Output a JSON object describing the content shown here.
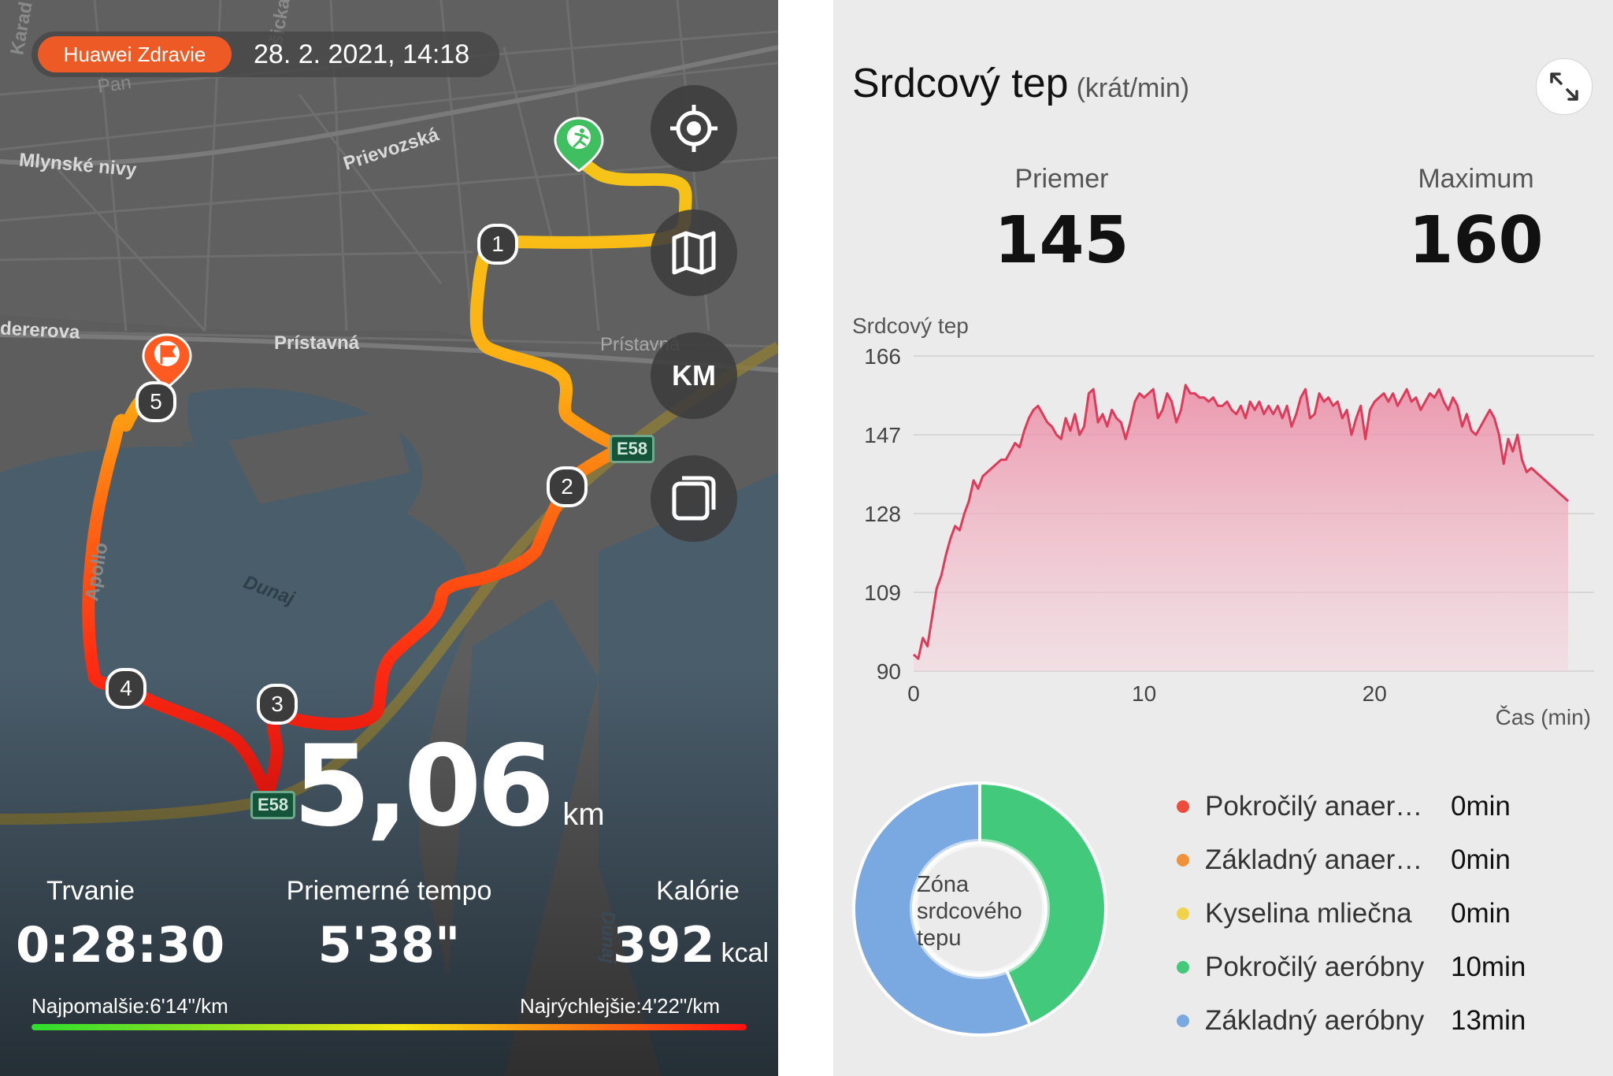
{
  "map": {
    "app_badge": "Huawei Zdravie",
    "datetime": "28. 2. 2021, 14:18",
    "road_labels": [
      "Mlynské nivy",
      "Prievozská",
      "dererova",
      "Prístavná",
      "Prístavná",
      "Dunaj",
      "Apollo",
      "Dunaj",
      "Karad",
      "ášicka",
      "Pan"
    ],
    "road_shields": [
      "E58",
      "E58"
    ],
    "buttons": [
      {
        "name": "locate-button",
        "icon": "crosshair-icon"
      },
      {
        "name": "map-style-button",
        "icon": "map-icon"
      },
      {
        "name": "unit-button",
        "label": "KM"
      },
      {
        "name": "layers-button",
        "icon": "layers-icon"
      }
    ],
    "km_markers": [
      "1",
      "2",
      "3",
      "4",
      "5"
    ],
    "start_icon": "runner-pin-icon",
    "finish_icon": "flag-pin-icon"
  },
  "summary": {
    "distance": "5,06",
    "distance_unit": "km",
    "duration_label": "Trvanie",
    "duration": "0:28:30",
    "pace_label": "Priemerné tempo",
    "pace": "5'38\"",
    "calories_label": "Kalórie",
    "calories": "392",
    "calories_unit": "kcal",
    "slowest": "Najpomalšie:6'14\"/km",
    "fastest": "Najrýchlejšie:4'22\"/km"
  },
  "heart": {
    "title": "Srdcový tep",
    "unit": "(krát/min)",
    "avg_label": "Priemer",
    "avg": "145",
    "max_label": "Maximum",
    "max": "160",
    "chart_label": "Srdcový tep",
    "expand_icon": "expand-icon",
    "donut_label": "Zóna srdcového tepu"
  },
  "chart_data": {
    "type": "area",
    "title": "",
    "ylabel": "Srdcový tep",
    "xlabel": "Čas (min)",
    "ylim": [
      90,
      166
    ],
    "yticks": [
      166,
      147,
      128,
      109,
      90
    ],
    "xlim": [
      0,
      28.5
    ],
    "xticks": [
      0,
      10,
      20
    ],
    "grid": true,
    "series": [
      {
        "x": [
          0,
          0.2,
          0.4,
          0.6,
          0.8,
          1.0,
          1.2,
          1.4,
          1.6,
          1.8,
          2.0,
          2.2,
          2.4,
          2.6,
          2.8,
          3.0,
          3.2,
          3.4,
          3.6,
          3.8,
          4.0,
          4.2,
          4.4,
          4.6,
          4.8,
          5.0,
          5.2,
          5.4,
          5.6,
          5.8,
          6.0,
          6.2,
          6.4,
          6.6,
          6.8,
          7.0,
          7.2,
          7.4,
          7.6,
          7.8,
          8.0,
          8.2,
          8.4,
          8.6,
          8.8,
          9.0,
          9.2,
          9.4,
          9.6,
          9.8,
          10.0,
          10.2,
          10.4,
          10.6,
          10.8,
          11.0,
          11.2,
          11.4,
          11.6,
          11.8,
          12.0,
          12.2,
          12.4,
          12.6,
          12.8,
          13.0,
          13.2,
          13.4,
          13.6,
          13.8,
          14.0,
          14.2,
          14.4,
          14.6,
          14.8,
          15.0,
          15.2,
          15.4,
          15.6,
          15.8,
          16.0,
          16.2,
          16.4,
          16.6,
          16.8,
          17.0,
          17.2,
          17.4,
          17.6,
          17.8,
          18.0,
          18.2,
          18.4,
          18.6,
          18.8,
          19.0,
          19.2,
          19.4,
          19.6,
          19.8,
          20.0,
          20.2,
          20.4,
          20.6,
          20.8,
          21.0,
          21.2,
          21.4,
          21.6,
          21.8,
          22.0,
          22.2,
          22.4,
          22.6,
          22.8,
          23.0,
          23.2,
          23.4,
          23.6,
          23.8,
          24.0,
          24.2,
          24.4,
          24.6,
          24.8,
          25.0,
          25.2,
          25.4,
          25.6,
          25.8,
          26.0,
          26.2,
          26.4,
          26.6,
          26.8,
          27.0,
          27.2,
          27.4,
          27.6,
          27.8,
          28.0,
          28.2,
          28.4
        ],
        "y": [
          94,
          93,
          98,
          96,
          103,
          110,
          113,
          118,
          122,
          125,
          124,
          128,
          131,
          136,
          134,
          137,
          138,
          139,
          140,
          141,
          141,
          143,
          145,
          144,
          148,
          151,
          153,
          154,
          152,
          150,
          149,
          147,
          146,
          151,
          148,
          152,
          147,
          149,
          157,
          158,
          150,
          152,
          149,
          153,
          151,
          150,
          146,
          150,
          155,
          157,
          156,
          157,
          158,
          151,
          153,
          157,
          155,
          150,
          153,
          159,
          157,
          157,
          156,
          156,
          155,
          156,
          154,
          154,
          155,
          153,
          152,
          154,
          151,
          155,
          153,
          155,
          152,
          154,
          152,
          154,
          151,
          154,
          149,
          152,
          156,
          158,
          151,
          152,
          157,
          155,
          156,
          154,
          155,
          151,
          153,
          147,
          151,
          154,
          146,
          153,
          155,
          156,
          157,
          155,
          157,
          154,
          156,
          158,
          155,
          156,
          153,
          155,
          157,
          156,
          158,
          155,
          153,
          156,
          154,
          149,
          152,
          148,
          147,
          149,
          151,
          153,
          151,
          147,
          140,
          146,
          143,
          147,
          141,
          138,
          139,
          138,
          137,
          136,
          135,
          134,
          133,
          132,
          131
        ]
      }
    ]
  },
  "zones": {
    "type": "pie",
    "items": [
      {
        "name": "Pokročilý anaerobný",
        "display": "Pokročilý anaer…",
        "value": 0,
        "value_label": "0min",
        "color": "#ef4b3c"
      },
      {
        "name": "Základný anaerobný",
        "display": "Základný anaer…",
        "value": 0,
        "value_label": "0min",
        "color": "#f0923a"
      },
      {
        "name": "Kyselina mliečna",
        "display": "Kyselina mliečna",
        "value": 0,
        "value_label": "0min",
        "color": "#f1d24b"
      },
      {
        "name": "Pokročilý aeróbny",
        "display": "Pokročilý aeróbny",
        "value": 10,
        "value_label": "10min",
        "color": "#43c97b"
      },
      {
        "name": "Základný aeróbny",
        "display": "Základný aeróbny",
        "value": 13,
        "value_label": "13min",
        "color": "#7aa8e1"
      }
    ]
  },
  "colors": {
    "brand": "#ee5a26",
    "route_start": "#f5c518",
    "route_end": "#ff1a10",
    "hr_line": "#de3a5a",
    "hr_fill": "#f0a0b4"
  }
}
